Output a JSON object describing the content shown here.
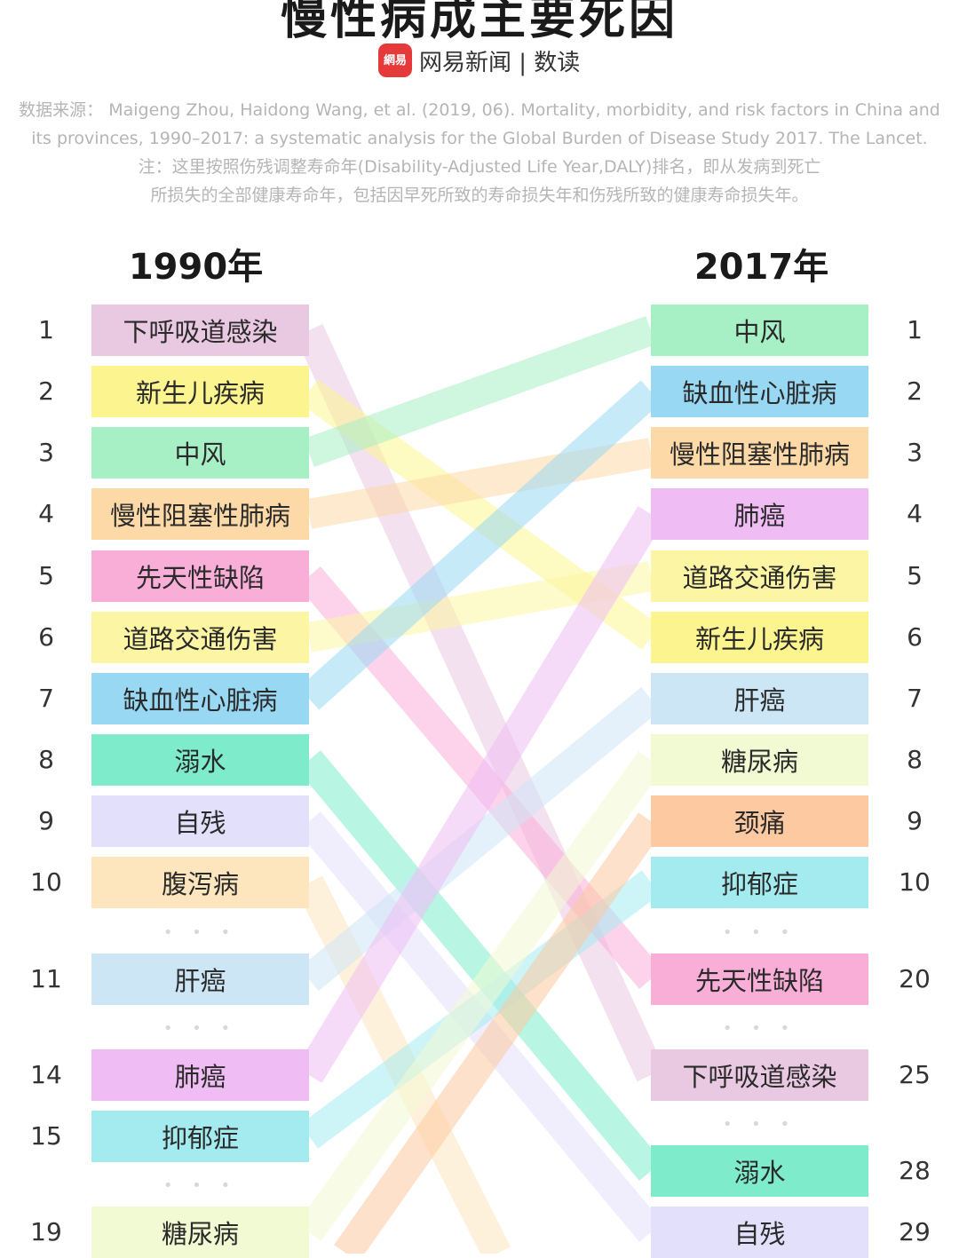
{
  "title": "慢性病成主要死因",
  "brand": {
    "logo_text": "網易",
    "text": "网易新闻 | 数读"
  },
  "source_lines": [
    "数据来源： Maigeng Zhou, Haidong Wang, et al. (2019, 06). Mortality, morbidity, and risk factors in China and",
    "its provinces, 1990–2017: a systematic analysis for the Global Burden of Disease Study 2017. The Lancet.",
    "注：这里按照伤残调整寿命年(Disability-Adjusted Life Year,DALY)排名，即从发病到死亡",
    "所损失的全部健康寿命年，包括因早死所致的寿命损失年和伤残所致的健康寿命损失年。"
  ],
  "chart_data": {
    "type": "table",
    "left_header": "1990年",
    "right_header": "2017年",
    "left": [
      {
        "rank": "1",
        "label": "下呼吸道感染",
        "color": "#e9c9e1"
      },
      {
        "rank": "2",
        "label": "新生儿疾病",
        "color": "#fcf58f"
      },
      {
        "rank": "3",
        "label": "中风",
        "color": "#a7efc5"
      },
      {
        "rank": "4",
        "label": "慢性阻塞性肺病",
        "color": "#fdd9a8"
      },
      {
        "rank": "5",
        "label": "先天性缺陷",
        "color": "#f9aed8"
      },
      {
        "rank": "6",
        "label": "道路交通伤害",
        "color": "#fcf5a3"
      },
      {
        "rank": "7",
        "label": "缺血性心脏病",
        "color": "#99d8f3"
      },
      {
        "rank": "8",
        "label": "溺水",
        "color": "#7eeccb"
      },
      {
        "rank": "9",
        "label": "自残",
        "color": "#e3e0fb"
      },
      {
        "rank": "10",
        "label": "腹泻病",
        "color": "#fde5bd"
      },
      {
        "rank": "11",
        "label": "肝癌",
        "color": "#cde6f6"
      },
      {
        "rank": "14",
        "label": "肺癌",
        "color": "#efbdf4"
      },
      {
        "rank": "15",
        "label": "抑郁症",
        "color": "#a4ebf0"
      },
      {
        "rank": "19",
        "label": "糖尿病",
        "color": "#f2fad3"
      }
    ],
    "right": [
      {
        "rank": "1",
        "label": "中风",
        "color": "#a7efc5"
      },
      {
        "rank": "2",
        "label": "缺血性心脏病",
        "color": "#99d8f3"
      },
      {
        "rank": "3",
        "label": "慢性阻塞性肺病",
        "color": "#fdd9a8"
      },
      {
        "rank": "4",
        "label": "肺癌",
        "color": "#efbdf4"
      },
      {
        "rank": "5",
        "label": "道路交通伤害",
        "color": "#fcf5a3"
      },
      {
        "rank": "6",
        "label": "新生儿疾病",
        "color": "#fcf58f"
      },
      {
        "rank": "7",
        "label": "肝癌",
        "color": "#cde6f6"
      },
      {
        "rank": "8",
        "label": "糖尿病",
        "color": "#f2fad3"
      },
      {
        "rank": "9",
        "label": "颈痛",
        "color": "#fdc9a0"
      },
      {
        "rank": "10",
        "label": "抑郁症",
        "color": "#a4ebf0"
      },
      {
        "rank": "20",
        "label": "先天性缺陷",
        "color": "#f9aed8"
      },
      {
        "rank": "25",
        "label": "下呼吸道感染",
        "color": "#e9c9e1"
      },
      {
        "rank": "28",
        "label": "溺水",
        "color": "#7eeccb"
      },
      {
        "rank": "29",
        "label": "自残",
        "color": "#e3e0fb"
      }
    ],
    "links": [
      {
        "from": "1",
        "to": "25",
        "color": "#e9c9e1"
      },
      {
        "from": "2",
        "to": "6",
        "color": "#fcf58f"
      },
      {
        "from": "3",
        "to": "1",
        "color": "#a7efc5"
      },
      {
        "from": "4",
        "to": "3",
        "color": "#fdd9a8"
      },
      {
        "from": "5",
        "to": "20",
        "color": "#f9aed8"
      },
      {
        "from": "6",
        "to": "5",
        "color": "#fcf5a3"
      },
      {
        "from": "7",
        "to": "2",
        "color": "#99d8f3"
      },
      {
        "from": "8",
        "to": "28",
        "color": "#7eeccb"
      },
      {
        "from": "9",
        "to": "29",
        "color": "#e3e0fb"
      },
      {
        "from": "10",
        "to": "",
        "color": "#fde5bd"
      },
      {
        "from": "11",
        "to": "7",
        "color": "#cde6f6"
      },
      {
        "from": "14",
        "to": "4",
        "color": "#efbdf4"
      },
      {
        "from": "15",
        "to": "10",
        "color": "#a4ebf0"
      },
      {
        "from": "19",
        "to": "8",
        "color": "#f2fad3"
      },
      {
        "from": "",
        "to": "9",
        "color": "#fdc9a0"
      }
    ],
    "ellipsis": "• • •"
  }
}
